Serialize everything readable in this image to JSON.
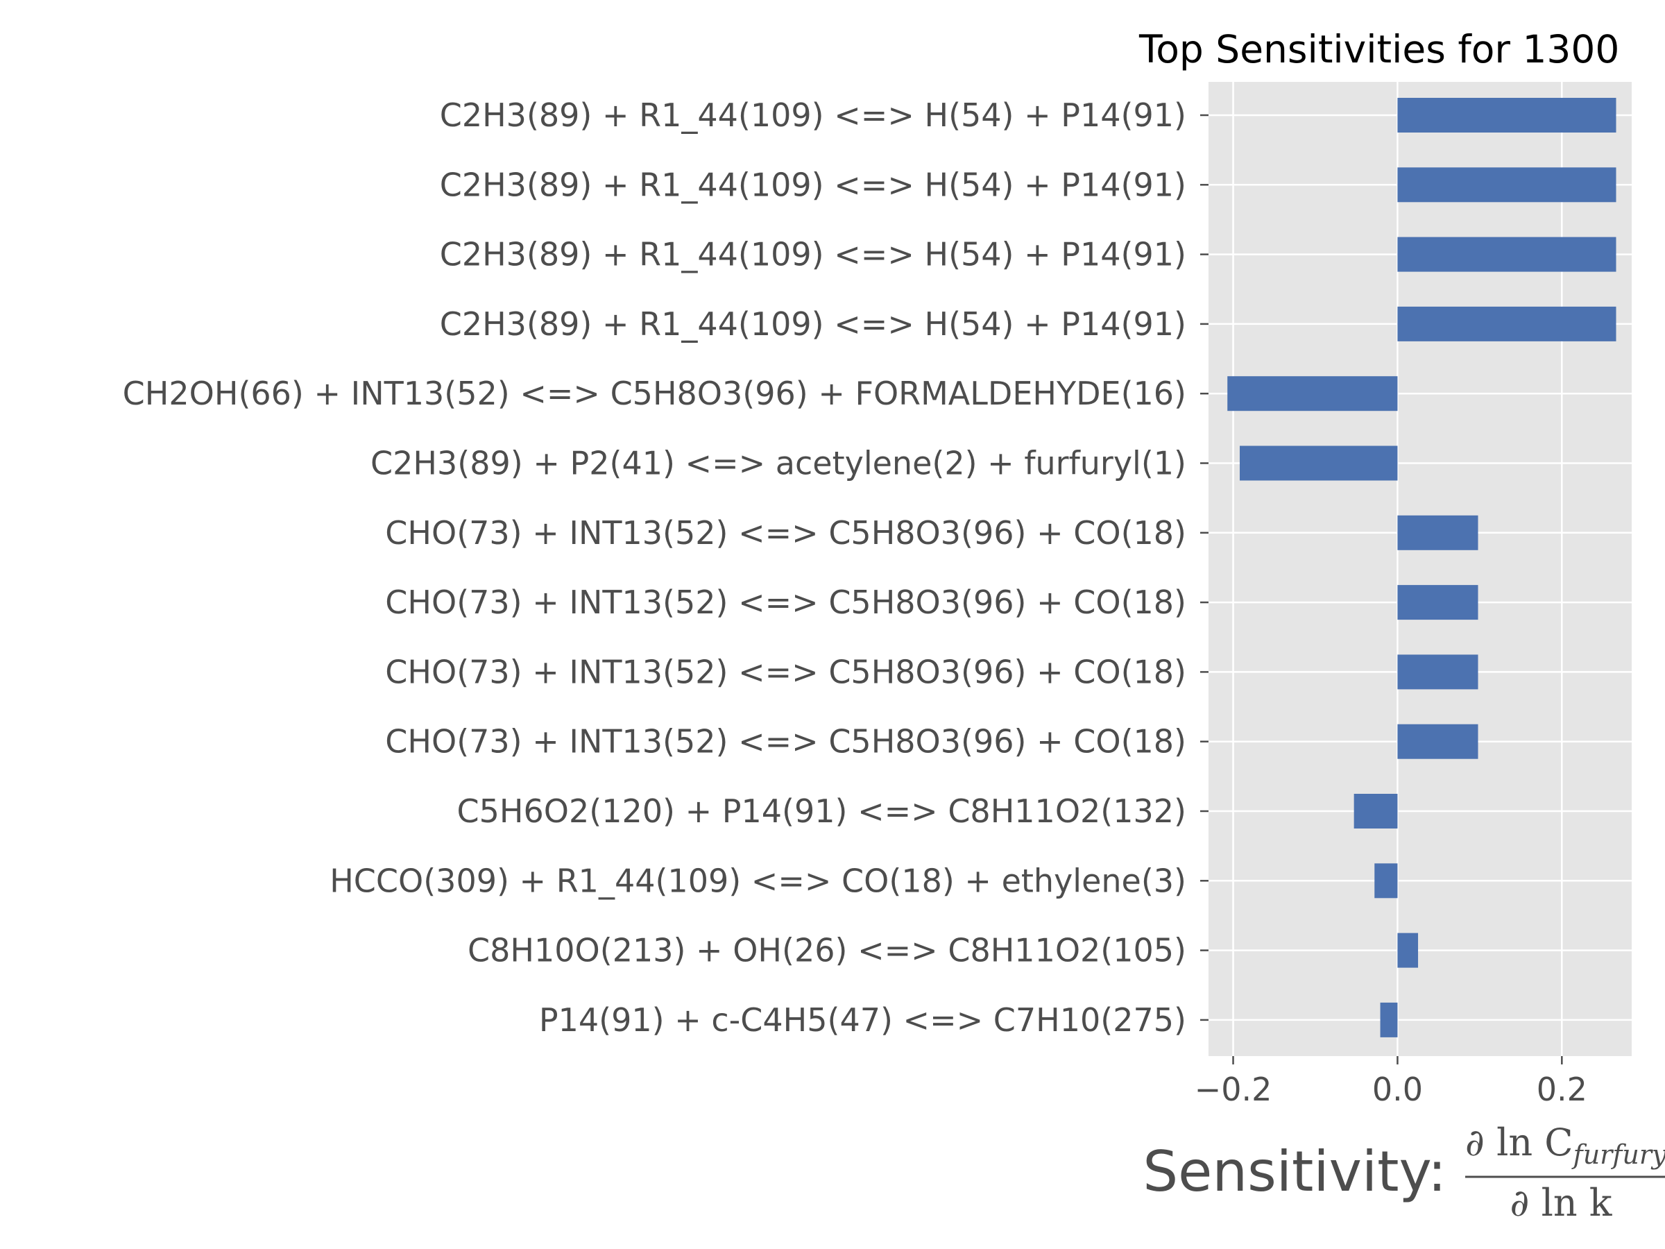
{
  "chart_data": {
    "type": "bar",
    "orientation": "horizontal",
    "title": "Top Sensitivities for 1300",
    "xlabel": "Sensitivity:",
    "xlabel_math": {
      "numerator_prefix": "∂ ln C",
      "numerator_subscript": "furfury",
      "denominator": "∂ ln k"
    },
    "ylabel": "",
    "categories": [
      "C2H3(89) + R1_44(109) <=> H(54) + P14(91)",
      "C2H3(89) + R1_44(109) <=> H(54) + P14(91)",
      "C2H3(89) + R1_44(109) <=> H(54) + P14(91)",
      "C2H3(89) + R1_44(109) <=> H(54) + P14(91)",
      "CH2OH(66) + INT13(52) <=> C5H8O3(96) + FORMALDEHYDE(16)",
      "C2H3(89) + P2(41) <=> acetylene(2) + furfuryl(1)",
      "CHO(73) + INT13(52) <=> C5H8O3(96) + CO(18)",
      "CHO(73) + INT13(52) <=> C5H8O3(96) + CO(18)",
      "CHO(73) + INT13(52) <=> C5H8O3(96) + CO(18)",
      "CHO(73) + INT13(52) <=> C5H8O3(96) + CO(18)",
      "C5H6O2(120) + P14(91) <=> C8H11O2(132)",
      "HCCO(309) + R1_44(109) <=> CO(18) + ethylene(3)",
      "C8H10O(213) + OH(26) <=> C8H11O2(105)",
      "P14(91) + c-C4H5(47) <=> C7H10(275)"
    ],
    "values": [
      0.266,
      0.266,
      0.266,
      0.266,
      -0.207,
      -0.192,
      0.098,
      0.098,
      0.098,
      0.098,
      -0.053,
      -0.028,
      0.025,
      -0.021
    ],
    "xlim": [
      -0.23,
      0.285
    ],
    "xticks": [
      -0.2,
      0.0,
      0.2
    ],
    "xtick_labels": [
      "−0.2",
      "0.0",
      "0.2"
    ],
    "grid": true,
    "bar_color": "#4c72b0",
    "background_color": "#e5e5e5",
    "grid_color": "#ffffff"
  }
}
